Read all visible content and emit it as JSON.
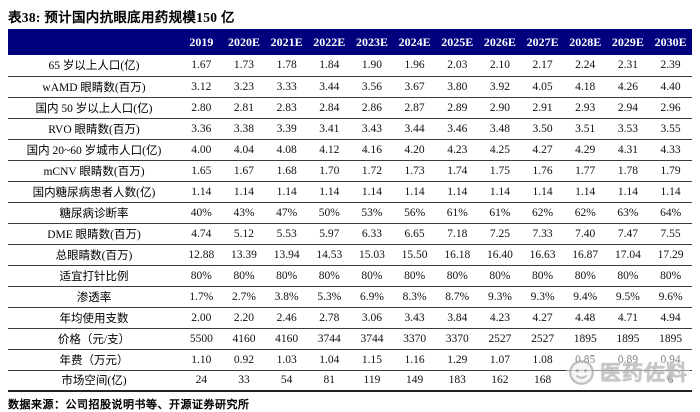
{
  "title": "表38:  预计国内抗眼底用药规模150 亿",
  "table": {
    "corner_label": "",
    "columns": [
      "2019",
      "2020E",
      "2021E",
      "2022E",
      "2023E",
      "2024E",
      "2025E",
      "2026E",
      "2027E",
      "2028E",
      "2029E",
      "2030E"
    ],
    "rows": [
      {
        "label": "65 岁以上人口(亿)",
        "values": [
          "1.67",
          "1.73",
          "1.78",
          "1.84",
          "1.90",
          "1.96",
          "2.03",
          "2.10",
          "2.17",
          "2.24",
          "2.31",
          "2.39"
        ]
      },
      {
        "label": "wAMD 眼睛数(百万)",
        "values": [
          "3.12",
          "3.23",
          "3.33",
          "3.44",
          "3.56",
          "3.67",
          "3.80",
          "3.92",
          "4.05",
          "4.18",
          "4.26",
          "4.40"
        ]
      },
      {
        "label": "国内 50 岁以上人口(亿)",
        "values": [
          "2.80",
          "2.81",
          "2.83",
          "2.84",
          "2.86",
          "2.87",
          "2.89",
          "2.90",
          "2.91",
          "2.93",
          "2.94",
          "2.96"
        ]
      },
      {
        "label": "RVO 眼睛数(百万)",
        "values": [
          "3.36",
          "3.38",
          "3.39",
          "3.41",
          "3.43",
          "3.44",
          "3.46",
          "3.48",
          "3.50",
          "3.51",
          "3.53",
          "3.55"
        ]
      },
      {
        "label": "国内 20~60 岁城市人口(亿)",
        "values": [
          "4.00",
          "4.04",
          "4.08",
          "4.12",
          "4.16",
          "4.20",
          "4.23",
          "4.25",
          "4.27",
          "4.29",
          "4.31",
          "4.33"
        ]
      },
      {
        "label": "mCNV 眼睛数(百万)",
        "values": [
          "1.65",
          "1.67",
          "1.68",
          "1.70",
          "1.72",
          "1.73",
          "1.74",
          "1.75",
          "1.76",
          "1.77",
          "1.78",
          "1.79"
        ]
      },
      {
        "label": "国内糖尿病患者人数(亿)",
        "values": [
          "1.14",
          "1.14",
          "1.14",
          "1.14",
          "1.14",
          "1.14",
          "1.14",
          "1.14",
          "1.14",
          "1.14",
          "1.14",
          "1.14"
        ]
      },
      {
        "label": "糖尿病诊断率",
        "values": [
          "40%",
          "43%",
          "47%",
          "50%",
          "53%",
          "56%",
          "61%",
          "61%",
          "62%",
          "62%",
          "63%",
          "64%"
        ]
      },
      {
        "label": "DME 眼睛数(百万)",
        "values": [
          "4.74",
          "5.12",
          "5.53",
          "5.97",
          "6.33",
          "6.65",
          "7.18",
          "7.25",
          "7.33",
          "7.40",
          "7.47",
          "7.55"
        ]
      },
      {
        "label": "总眼睛数(百万)",
        "values": [
          "12.88",
          "13.39",
          "13.94",
          "14.53",
          "15.03",
          "15.50",
          "16.18",
          "16.40",
          "16.63",
          "16.87",
          "17.04",
          "17.29"
        ]
      },
      {
        "label": "适宜打针比例",
        "values": [
          "80%",
          "80%",
          "80%",
          "80%",
          "80%",
          "80%",
          "80%",
          "80%",
          "80%",
          "80%",
          "80%",
          "80%"
        ]
      },
      {
        "label": "渗透率",
        "values": [
          "1.7%",
          "2.7%",
          "3.8%",
          "5.3%",
          "6.9%",
          "8.3%",
          "8.7%",
          "9.3%",
          "9.3%",
          "9.4%",
          "9.5%",
          "9.6%"
        ]
      },
      {
        "label": "年均使用支数",
        "values": [
          "2.00",
          "2.20",
          "2.46",
          "2.78",
          "3.06",
          "3.43",
          "3.84",
          "4.23",
          "4.27",
          "4.48",
          "4.71",
          "4.94"
        ]
      },
      {
        "label": "价格（元/支）",
        "values": [
          "5500",
          "4160",
          "4160",
          "3744",
          "3744",
          "3370",
          "3370",
          "2527",
          "2527",
          "1895",
          "1895",
          "1895"
        ]
      },
      {
        "label": "年费（万元）",
        "values": [
          "1.10",
          "0.92",
          "1.03",
          "1.04",
          "1.15",
          "1.16",
          "1.29",
          "1.07",
          "1.08",
          "0.85",
          "0.89",
          "0.94"
        ]
      },
      {
        "label": "市场空间(亿)",
        "values": [
          "24",
          "33",
          "54",
          "81",
          "119",
          "149",
          "183",
          "162",
          "168",
          "",
          "",
          "6"
        ]
      }
    ]
  },
  "footer": {
    "source": "数据来源：公司招股说明书等、开源证券研究所"
  },
  "watermark": {
    "logo": "face-logo",
    "text": "医药佐料"
  },
  "colors": {
    "header_bg": "#00007e",
    "header_text": "#ffffff",
    "row_line": "#3c3c3c",
    "watermark_text": "#bdbdbd"
  }
}
